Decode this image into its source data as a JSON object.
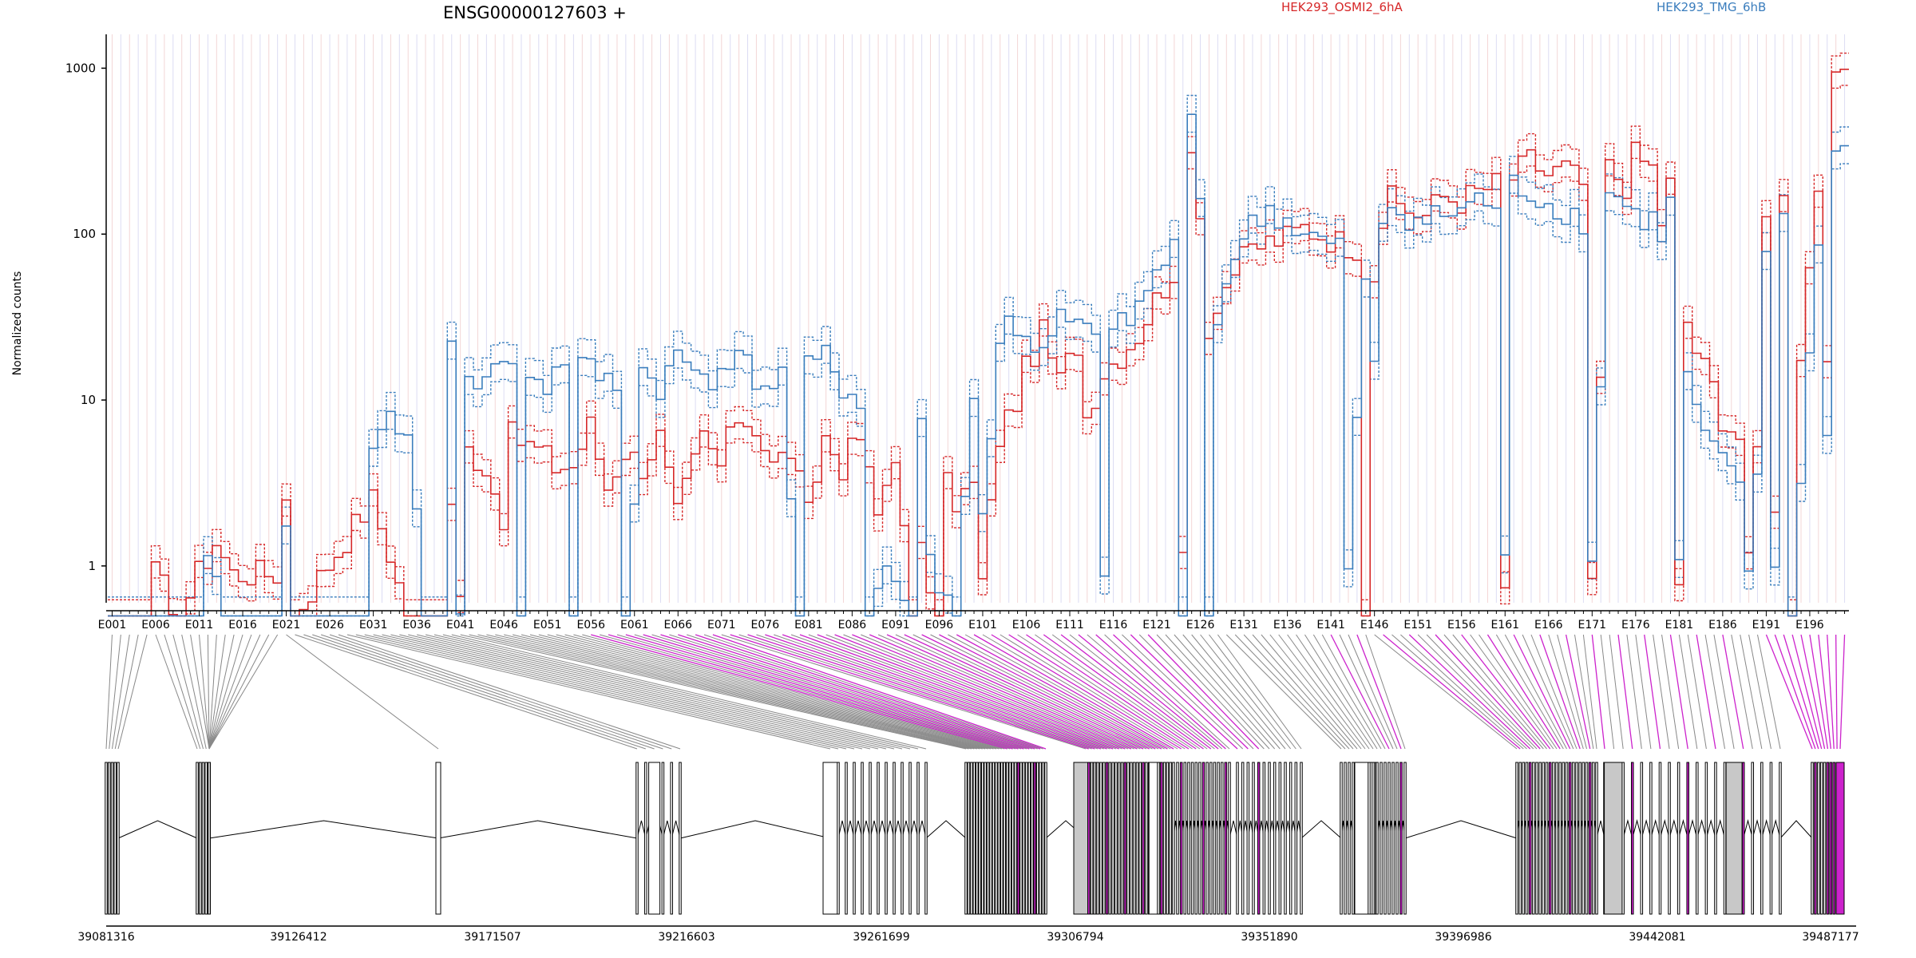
{
  "chart_data": {
    "type": "line",
    "title": "ENSG00000127603 +",
    "ylabel": "Normalized counts",
    "yscale": "log",
    "ylim": [
      0.5,
      1500
    ],
    "yticks": [
      "1",
      "10",
      "100",
      "1000"
    ],
    "exon_count": 200,
    "exon_labels": [
      "E001",
      "E006",
      "E011",
      "E016",
      "E021",
      "E026",
      "E031",
      "E036",
      "E041",
      "E046",
      "E051",
      "E056",
      "E061",
      "E066",
      "E071",
      "E076",
      "E081",
      "E086",
      "E091",
      "E096",
      "E101",
      "E106",
      "E111",
      "E116",
      "E121",
      "E126",
      "E131",
      "E136",
      "E141",
      "E146",
      "E151",
      "E156",
      "E161",
      "E166",
      "E171",
      "E176",
      "E181",
      "E186",
      "E191",
      "E196"
    ],
    "genomic_labels": [
      "39081316",
      "39126412",
      "39171507",
      "39216603",
      "39261699",
      "39306794",
      "39351890",
      "39396986",
      "39442081",
      "39487177"
    ],
    "genomic_range": [
      39081316,
      39487177
    ],
    "series": [
      {
        "name": "HEK293_OSMI2_6hA",
        "color": "#d62728"
      },
      {
        "name": "HEK293_TMG_6hB",
        "color": "#3a7dbd"
      }
    ],
    "highlighted_color": "#cc22cc",
    "connector_gray": "#888888",
    "anchors_red": [
      [
        1,
        0.5
      ],
      [
        5,
        0.5
      ],
      [
        6,
        0.9
      ],
      [
        9,
        0.5
      ],
      [
        11,
        0.9
      ],
      [
        13,
        1.4
      ],
      [
        15,
        0.9
      ],
      [
        20,
        0.9
      ],
      [
        21,
        2.5
      ],
      [
        22,
        0.5
      ],
      [
        31,
        2.5
      ],
      [
        33,
        1.2
      ],
      [
        35,
        0.5
      ],
      [
        39,
        0.5
      ],
      [
        40,
        2.5
      ],
      [
        41,
        0.6
      ],
      [
        42,
        5
      ],
      [
        44,
        4
      ],
      [
        46,
        2
      ],
      [
        47,
        6
      ],
      [
        50,
        5
      ],
      [
        52,
        4
      ],
      [
        54,
        4
      ],
      [
        56,
        7
      ],
      [
        58,
        3
      ],
      [
        60,
        5
      ],
      [
        62,
        4
      ],
      [
        64,
        6
      ],
      [
        66,
        2
      ],
      [
        69,
        6
      ],
      [
        71,
        4
      ],
      [
        73,
        8
      ],
      [
        75,
        7
      ],
      [
        77,
        4
      ],
      [
        79,
        5
      ],
      [
        81,
        2
      ],
      [
        83,
        6
      ],
      [
        85,
        4
      ],
      [
        87,
        6
      ],
      [
        89,
        2
      ],
      [
        91,
        5
      ],
      [
        93,
        0.5
      ],
      [
        94,
        1.2
      ],
      [
        96,
        0.5
      ],
      [
        97,
        3
      ],
      [
        98,
        2.5
      ],
      [
        100,
        3
      ],
      [
        101,
        0.8
      ],
      [
        103,
        6
      ],
      [
        105,
        10
      ],
      [
        106,
        15
      ],
      [
        108,
        25
      ],
      [
        110,
        13
      ],
      [
        112,
        22
      ],
      [
        113,
        8
      ],
      [
        115,
        15
      ],
      [
        117,
        19
      ],
      [
        119,
        25
      ],
      [
        121,
        40
      ],
      [
        123,
        60
      ],
      [
        124,
        1
      ],
      [
        125,
        300
      ],
      [
        126,
        150
      ],
      [
        127,
        25
      ],
      [
        128,
        40
      ],
      [
        130,
        60
      ],
      [
        132,
        80
      ],
      [
        134,
        90
      ],
      [
        136,
        95
      ],
      [
        138,
        110
      ],
      [
        140,
        100
      ],
      [
        142,
        90
      ],
      [
        144,
        85
      ],
      [
        145,
        0.5
      ],
      [
        146,
        60
      ],
      [
        147,
        120
      ],
      [
        148,
        160
      ],
      [
        150,
        140
      ],
      [
        152,
        130
      ],
      [
        154,
        170
      ],
      [
        156,
        160
      ],
      [
        158,
        180
      ],
      [
        160,
        200
      ],
      [
        161,
        0.7
      ],
      [
        162,
        220
      ],
      [
        164,
        280
      ],
      [
        166,
        230
      ],
      [
        168,
        250
      ],
      [
        170,
        200
      ],
      [
        171,
        0.7
      ],
      [
        173,
        250
      ],
      [
        175,
        200
      ],
      [
        176,
        300
      ],
      [
        178,
        250
      ],
      [
        179,
        120
      ],
      [
        180,
        200
      ],
      [
        181,
        0.7
      ],
      [
        182,
        30
      ],
      [
        183,
        20
      ],
      [
        185,
        12
      ],
      [
        186,
        8
      ],
      [
        188,
        6
      ],
      [
        189,
        1
      ],
      [
        190,
        5
      ],
      [
        191,
        150
      ],
      [
        192,
        2
      ],
      [
        193,
        200
      ],
      [
        194,
        0.5
      ],
      [
        195,
        20
      ],
      [
        197,
        200
      ],
      [
        198,
        14
      ],
      [
        199,
        800
      ],
      [
        200,
        1000
      ]
    ],
    "anchors_blue": [
      [
        1,
        0.5
      ],
      [
        11,
        0.5
      ],
      [
        12,
        1
      ],
      [
        14,
        0.5
      ],
      [
        20,
        0.5
      ],
      [
        21,
        2
      ],
      [
        22,
        0.5
      ],
      [
        30,
        0.5
      ],
      [
        31,
        5
      ],
      [
        33,
        8
      ],
      [
        35,
        7
      ],
      [
        37,
        0.5
      ],
      [
        39,
        0.5
      ],
      [
        40,
        20
      ],
      [
        41,
        0.6
      ],
      [
        42,
        15
      ],
      [
        44,
        12
      ],
      [
        45,
        18
      ],
      [
        47,
        15
      ],
      [
        48,
        0.5
      ],
      [
        49,
        15
      ],
      [
        51,
        12
      ],
      [
        53,
        18
      ],
      [
        54,
        0.5
      ],
      [
        55,
        16
      ],
      [
        57,
        14
      ],
      [
        59,
        12
      ],
      [
        60,
        0.5
      ],
      [
        62,
        15
      ],
      [
        64,
        12
      ],
      [
        66,
        18
      ],
      [
        68,
        15
      ],
      [
        70,
        14
      ],
      [
        72,
        18
      ],
      [
        74,
        16
      ],
      [
        76,
        12
      ],
      [
        78,
        14
      ],
      [
        80,
        0.5
      ],
      [
        81,
        15
      ],
      [
        83,
        18
      ],
      [
        85,
        12
      ],
      [
        87,
        10
      ],
      [
        88,
        0.5
      ],
      [
        90,
        1
      ],
      [
        93,
        0.5
      ],
      [
        94,
        8
      ],
      [
        95,
        1
      ],
      [
        98,
        0.5
      ],
      [
        100,
        12
      ],
      [
        101,
        2
      ],
      [
        103,
        20
      ],
      [
        104,
        30
      ],
      [
        106,
        25
      ],
      [
        108,
        18
      ],
      [
        110,
        30
      ],
      [
        112,
        28
      ],
      [
        114,
        22
      ],
      [
        115,
        1
      ],
      [
        116,
        25
      ],
      [
        118,
        30
      ],
      [
        120,
        45
      ],
      [
        122,
        70
      ],
      [
        123,
        80
      ],
      [
        124,
        0.5
      ],
      [
        125,
        500
      ],
      [
        126,
        200
      ],
      [
        127,
        0.5
      ],
      [
        128,
        30
      ],
      [
        130,
        80
      ],
      [
        132,
        110
      ],
      [
        134,
        140
      ],
      [
        136,
        120
      ],
      [
        138,
        100
      ],
      [
        140,
        90
      ],
      [
        142,
        80
      ],
      [
        143,
        1
      ],
      [
        145,
        50
      ],
      [
        146,
        15
      ],
      [
        147,
        120
      ],
      [
        148,
        150
      ],
      [
        150,
        130
      ],
      [
        152,
        120
      ],
      [
        154,
        130
      ],
      [
        156,
        140
      ],
      [
        158,
        160
      ],
      [
        160,
        150
      ],
      [
        161,
        1
      ],
      [
        162,
        200
      ],
      [
        164,
        180
      ],
      [
        166,
        150
      ],
      [
        168,
        140
      ],
      [
        170,
        120
      ],
      [
        171,
        1
      ],
      [
        173,
        180
      ],
      [
        175,
        150
      ],
      [
        176,
        130
      ],
      [
        178,
        120
      ],
      [
        179,
        100
      ],
      [
        180,
        150
      ],
      [
        181,
        1
      ],
      [
        182,
        15
      ],
      [
        183,
        8
      ],
      [
        185,
        5
      ],
      [
        186,
        4
      ],
      [
        188,
        3
      ],
      [
        189,
        1
      ],
      [
        190,
        3
      ],
      [
        191,
        80
      ],
      [
        192,
        1
      ],
      [
        193,
        150
      ],
      [
        194,
        0.5
      ],
      [
        195,
        3
      ],
      [
        197,
        100
      ],
      [
        198,
        6
      ],
      [
        199,
        300
      ],
      [
        200,
        400
      ]
    ]
  }
}
